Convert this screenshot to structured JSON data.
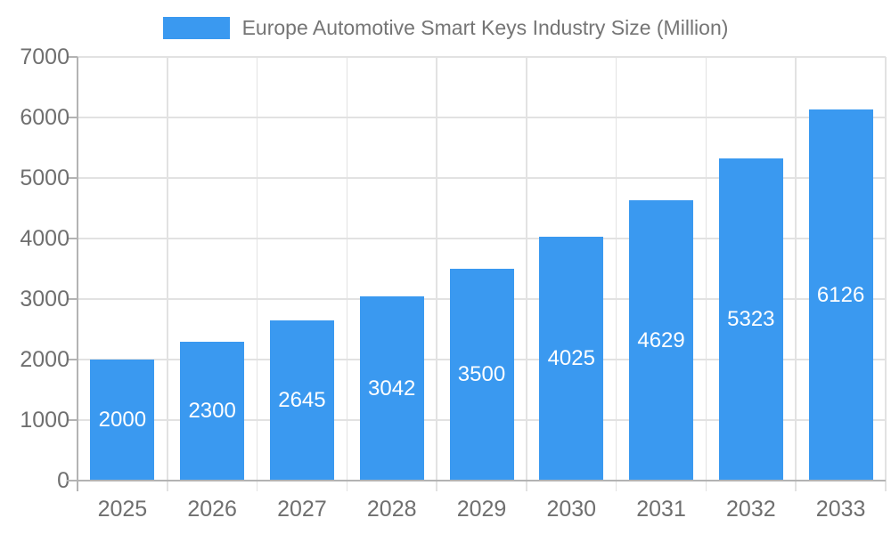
{
  "chart_data": {
    "type": "bar",
    "title": "Europe Automotive Smart Keys Industry Size (Million)",
    "series_name": "Europe Automotive Smart Keys Industry Size (Million)",
    "categories": [
      "2025",
      "2026",
      "2027",
      "2028",
      "2029",
      "2030",
      "2031",
      "2032",
      "2033"
    ],
    "values": [
      2000,
      2300,
      2645,
      3042,
      3500,
      4025,
      4629,
      5323,
      6126
    ],
    "value_labels": [
      "2000",
      "2300",
      "2645",
      "3042",
      "3500",
      "4025",
      "4629",
      "5323",
      "6126"
    ],
    "xlabel": "",
    "ylabel": "",
    "ylim": [
      0,
      7000
    ],
    "ytick_step": 1000,
    "ytick_labels": [
      "0",
      "1000",
      "2000",
      "3000",
      "4000",
      "5000",
      "6000",
      "7000"
    ],
    "grid": true,
    "legend_position": "top"
  },
  "colors": {
    "bar": "#3a99f0",
    "grid": "#e2e2e2",
    "axis": "#b3b3b3",
    "tick_text": "#6f6f6f",
    "legend_text": "#757575",
    "value_text": "#ffffff",
    "background": "#ffffff"
  }
}
